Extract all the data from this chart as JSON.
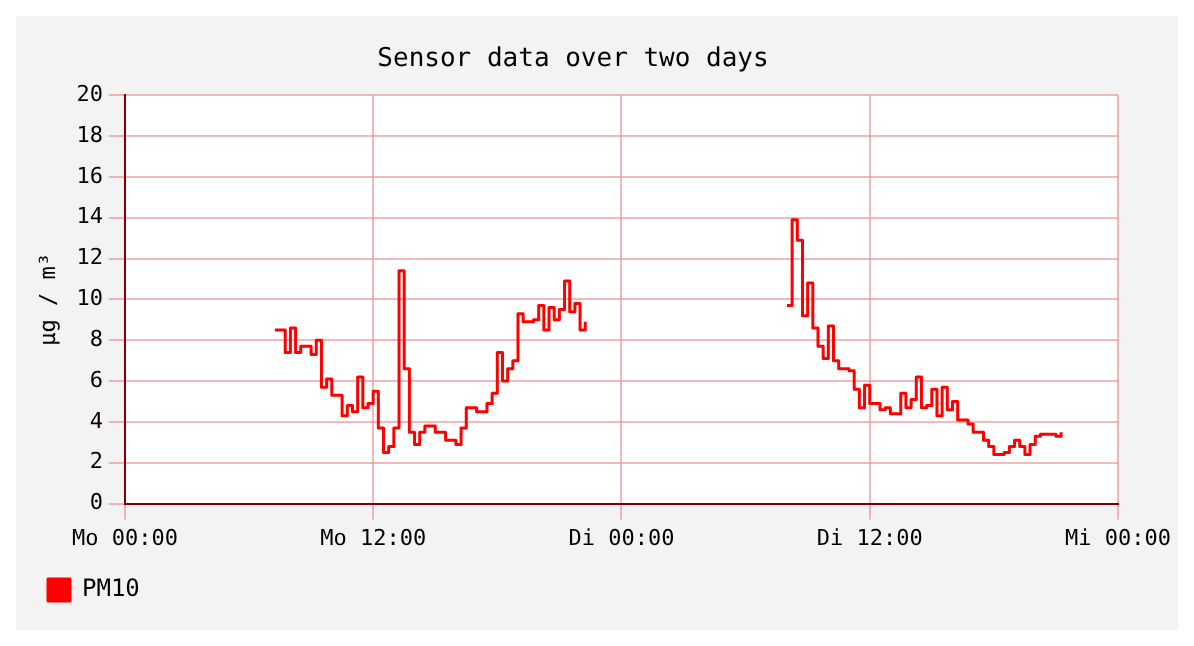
{
  "chart_data": {
    "type": "step",
    "title": "Sensor data over two days",
    "ylabel": "µg / m³",
    "categories": [
      "Mo 00:00",
      null,
      null,
      null,
      null,
      null,
      null,
      null,
      null,
      null,
      null,
      null,
      null,
      null,
      null,
      null,
      null,
      null,
      null,
      null,
      null,
      null,
      null,
      null,
      null,
      null,
      null,
      null,
      null,
      null,
      null,
      null,
      null,
      null,
      null,
      null,
      null,
      null,
      null,
      null,
      null,
      null,
      null,
      null,
      null,
      null,
      null,
      null,
      "Mo 12:00",
      null,
      null,
      null,
      null,
      null,
      null,
      null,
      null,
      null,
      null,
      null,
      null,
      null,
      null,
      null,
      null,
      null,
      null,
      null,
      null,
      null,
      null,
      null,
      null,
      null,
      null,
      null,
      null,
      null,
      null,
      null,
      null,
      null,
      null,
      null,
      null,
      null,
      null,
      null,
      null,
      null,
      null,
      null,
      null,
      null,
      null,
      null,
      "Di 00:00",
      null,
      null,
      null,
      null,
      null,
      null,
      null,
      null,
      null,
      null,
      null,
      null,
      null,
      null,
      null,
      null,
      null,
      null,
      null,
      null,
      null,
      null,
      null,
      null,
      null,
      null,
      null,
      null,
      null,
      null,
      null,
      null,
      null,
      null,
      null,
      null,
      null,
      null,
      null,
      null,
      null,
      null,
      null,
      null,
      null,
      null,
      null,
      "Di 12:00",
      null,
      null,
      null,
      null,
      null,
      null,
      null,
      null,
      null,
      null,
      null,
      null,
      null,
      null,
      null,
      null,
      null,
      null,
      null,
      null,
      null,
      null,
      null,
      null,
      null,
      null,
      null,
      null,
      null,
      null,
      null,
      null,
      null,
      null,
      null,
      null,
      null,
      null,
      null,
      null,
      null,
      null,
      null,
      null,
      null,
      null,
      null,
      "Mi 00:00"
    ],
    "ylim": [
      0,
      20
    ],
    "yticks": [
      0,
      2,
      4,
      6,
      8,
      10,
      12,
      14,
      16,
      18,
      20
    ],
    "grid": true,
    "legend": "bottom left",
    "marker": "none",
    "line_style": "solid",
    "series": [
      {
        "name": "PM10",
        "color": "#ff0000",
        "values": [
          null,
          null,
          null,
          null,
          null,
          null,
          null,
          null,
          null,
          null,
          null,
          null,
          null,
          null,
          null,
          null,
          null,
          null,
          null,
          null,
          null,
          null,
          null,
          null,
          null,
          null,
          null,
          null,
          null,
          8.5,
          8.5,
          7.4,
          8.6,
          7.4,
          7.7,
          7.7,
          7.3,
          8.0,
          5.7,
          6.1,
          5.3,
          5.3,
          4.3,
          4.8,
          4.5,
          6.2,
          4.7,
          4.9,
          5.5,
          3.7,
          2.5,
          2.8,
          3.7,
          11.4,
          6.6,
          3.5,
          2.9,
          3.5,
          3.8,
          3.8,
          3.5,
          3.5,
          3.1,
          3.1,
          2.9,
          3.7,
          4.7,
          4.7,
          4.5,
          4.5,
          4.9,
          5.4,
          7.4,
          6.0,
          6.6,
          7.0,
          9.3,
          8.9,
          8.9,
          9.0,
          9.7,
          8.5,
          9.6,
          9.0,
          9.5,
          10.9,
          9.4,
          9.8,
          8.5,
          8.9,
          null,
          null,
          null,
          null,
          null,
          null,
          null,
          null,
          null,
          null,
          null,
          null,
          null,
          null,
          null,
          null,
          null,
          null,
          null,
          null,
          null,
          null,
          null,
          null,
          null,
          null,
          null,
          null,
          null,
          null,
          null,
          null,
          null,
          null,
          null,
          null,
          null,
          null,
          9.7,
          13.9,
          12.9,
          9.2,
          10.8,
          8.6,
          7.7,
          7.1,
          8.7,
          7.0,
          6.6,
          6.6,
          6.5,
          5.6,
          4.7,
          5.8,
          4.9,
          4.9,
          4.6,
          4.7,
          4.4,
          4.4,
          5.4,
          4.7,
          5.1,
          6.2,
          4.7,
          4.8,
          5.6,
          4.3,
          5.7,
          4.6,
          5.0,
          4.1,
          4.1,
          3.9,
          3.5,
          3.5,
          3.1,
          2.8,
          2.4,
          2.4,
          2.5,
          2.8,
          3.1,
          2.8,
          2.4,
          2.9,
          3.3,
          3.4,
          3.4,
          3.4,
          3.3,
          3.5,
          null,
          null,
          null,
          null,
          null,
          null,
          null,
          null,
          null,
          null,
          null
        ]
      }
    ]
  }
}
